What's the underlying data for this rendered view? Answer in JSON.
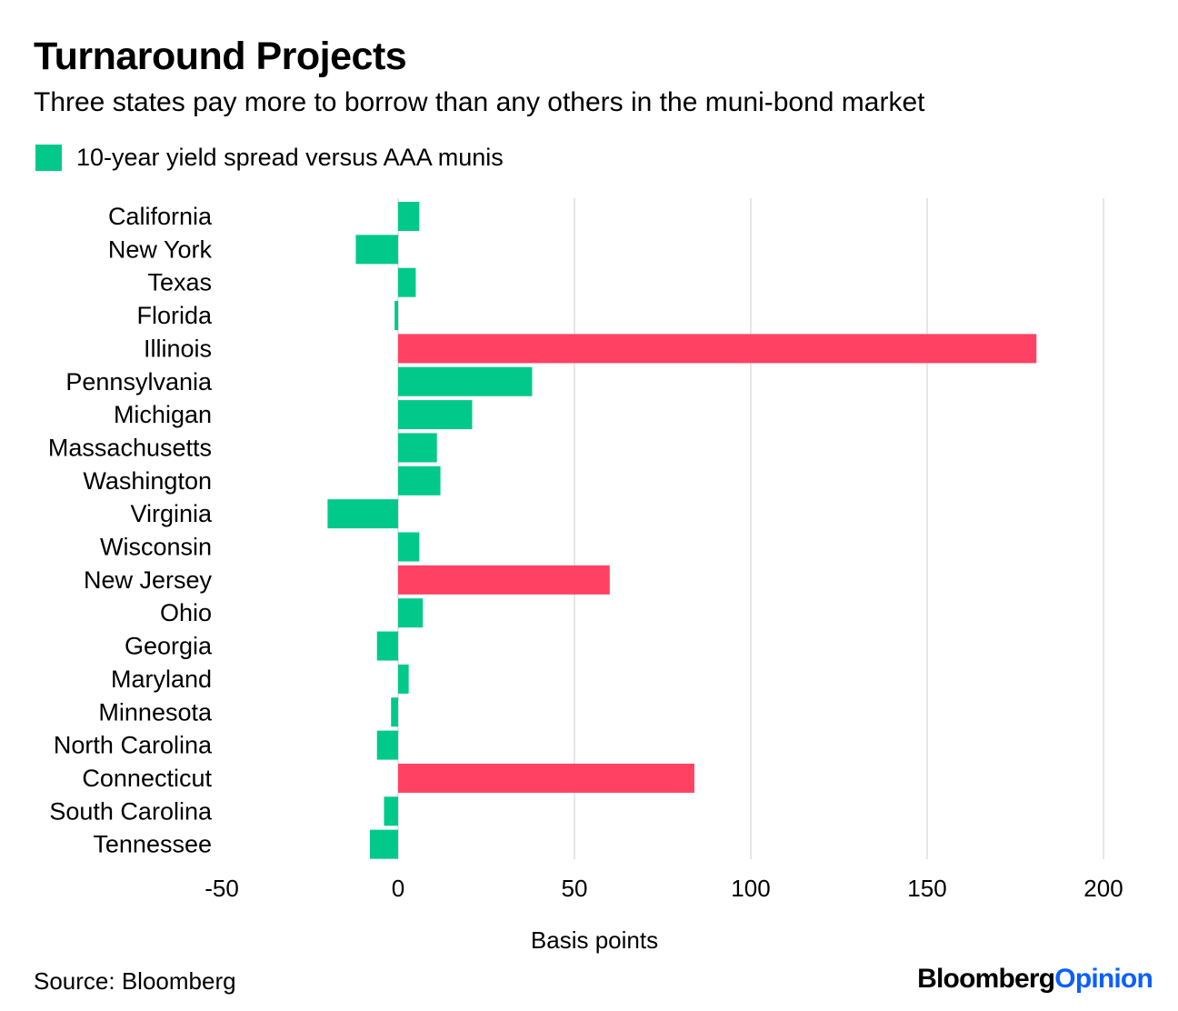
{
  "title": "Turnaround Projects",
  "subtitle": "Three states pay more to borrow than any others in the muni-bond market",
  "legend": {
    "label": "10-year yield spread versus AAA munis",
    "color": "#00c98a"
  },
  "source": "Source: Bloomberg",
  "brand": {
    "part1": "Bloomberg",
    "part2": "Opinion"
  },
  "colors": {
    "normal": "#00c98a",
    "highlight": "#ff4263",
    "grid": "#e6e6e6"
  },
  "chart_data": {
    "type": "bar",
    "orientation": "horizontal",
    "xlabel": "Basis points",
    "xlim": [
      -50,
      200
    ],
    "xticks": [
      -50,
      0,
      50,
      100,
      150,
      200
    ],
    "xtick_labels": [
      "-50",
      "0",
      "50",
      "100",
      "150",
      "200"
    ],
    "grid": true,
    "categories": [
      "California",
      "New York",
      "Texas",
      "Florida",
      "Illinois",
      "Pennsylvania",
      "Michigan",
      "Massachusetts",
      "Washington",
      "Virginia",
      "Wisconsin",
      "New Jersey",
      "Ohio",
      "Georgia",
      "Maryland",
      "Minnesota",
      "North Carolina",
      "Connecticut",
      "South Carolina",
      "Tennessee"
    ],
    "series": [
      {
        "name": "10-year yield spread versus AAA munis",
        "values": [
          6,
          -12,
          5,
          -1,
          181,
          38,
          21,
          11,
          12,
          -20,
          6,
          60,
          7,
          -6,
          3,
          -2,
          -6,
          84,
          -4,
          -8
        ],
        "highlight": [
          false,
          false,
          false,
          false,
          true,
          false,
          false,
          false,
          false,
          false,
          false,
          true,
          false,
          false,
          false,
          false,
          false,
          true,
          false,
          false
        ]
      }
    ]
  }
}
